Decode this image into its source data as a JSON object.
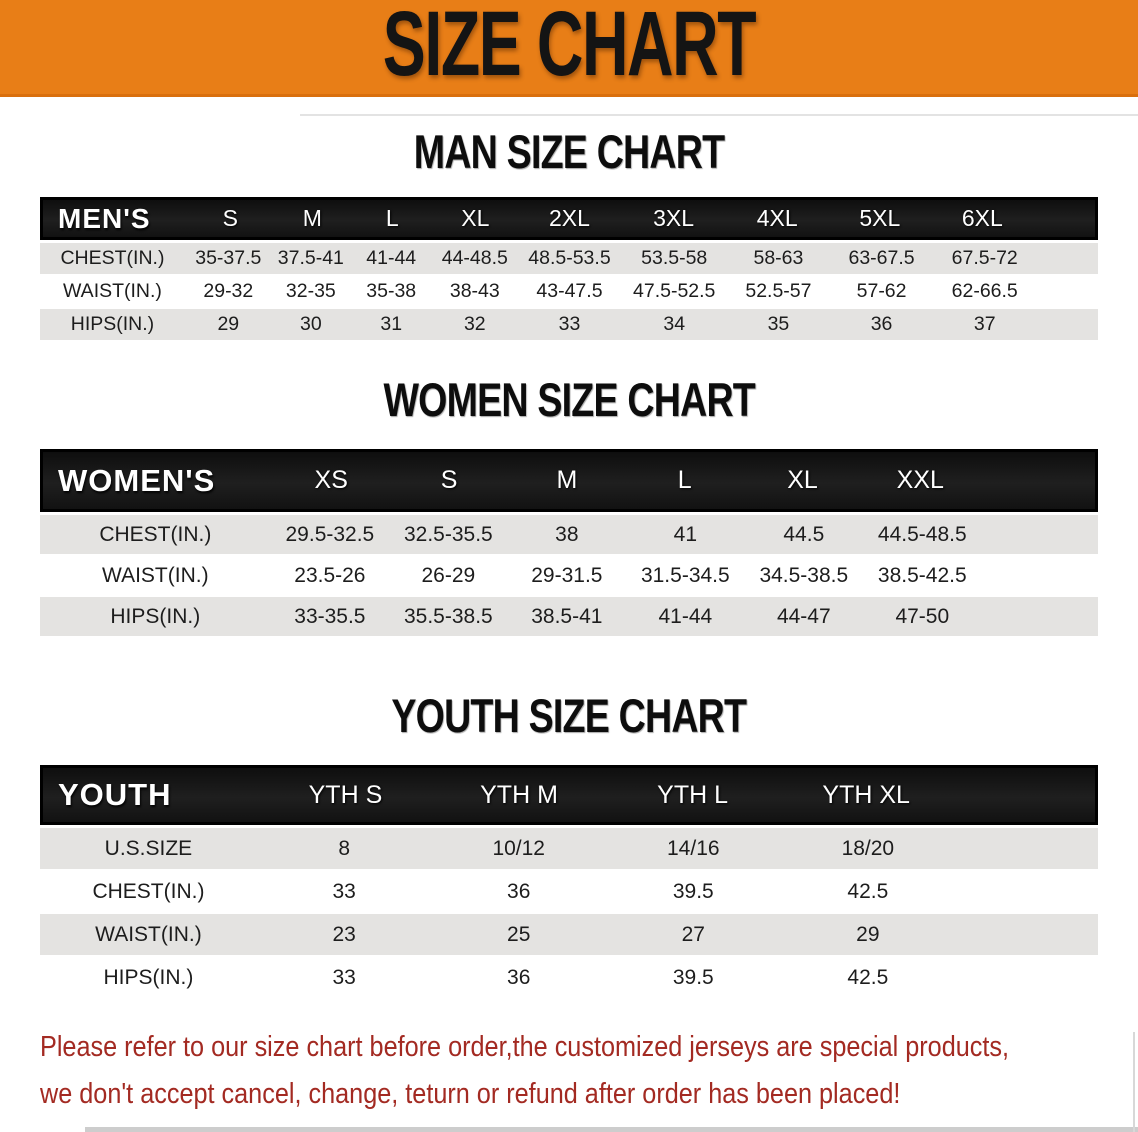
{
  "banner": {
    "title": "SIZE CHART",
    "bg_color": "#e87e17",
    "text_color": "#141414"
  },
  "tables": [
    {
      "id": "men",
      "heading": "MAN SIZE CHART",
      "header_label": "MEN'S",
      "columns": [
        "S",
        "M",
        "L",
        "XL",
        "2XL",
        "3XL",
        "4XL",
        "5XL",
        "6XL"
      ],
      "rows": [
        {
          "label": "CHEST(IN.)",
          "values": [
            "35-37.5",
            "37.5-41",
            "41-44",
            "44-48.5",
            "48.5-53.5",
            "53.5-58",
            "58-63",
            "63-67.5",
            "67.5-72"
          ]
        },
        {
          "label": "WAIST(IN.)",
          "values": [
            "29-32",
            "32-35",
            "35-38",
            "38-43",
            "43-47.5",
            "47.5-52.5",
            "52.5-57",
            "57-62",
            "62-66.5"
          ]
        },
        {
          "label": "HIPS(IN.)",
          "values": [
            "29",
            "30",
            "31",
            "32",
            "33",
            "34",
            "35",
            "36",
            "37"
          ]
        }
      ]
    },
    {
      "id": "women",
      "heading": "WOMEN SIZE CHART",
      "header_label": "WOMEN'S",
      "columns": [
        "XS",
        "S",
        "M",
        "L",
        "XL",
        "XXL"
      ],
      "rows": [
        {
          "label": "CHEST(IN.)",
          "values": [
            "29.5-32.5",
            "32.5-35.5",
            "38",
            "41",
            "44.5",
            "44.5-48.5"
          ]
        },
        {
          "label": "WAIST(IN.)",
          "values": [
            "23.5-26",
            "26-29",
            "29-31.5",
            "31.5-34.5",
            "34.5-38.5",
            "38.5-42.5"
          ]
        },
        {
          "label": "HIPS(IN.)",
          "values": [
            "33-35.5",
            "35.5-38.5",
            "38.5-41",
            "41-44",
            "44-47",
            "47-50"
          ]
        }
      ]
    },
    {
      "id": "youth",
      "heading": "YOUTH SIZE CHART",
      "header_label": "YOUTH",
      "columns": [
        "YTH S",
        "YTH M",
        "YTH L",
        "YTH XL"
      ],
      "rows": [
        {
          "label": "U.S.SIZE",
          "values": [
            "8",
            "10/12",
            "14/16",
            "18/20"
          ]
        },
        {
          "label": "CHEST(IN.)",
          "values": [
            "33",
            "36",
            "39.5",
            "42.5"
          ]
        },
        {
          "label": "WAIST(IN.)",
          "values": [
            "23",
            "25",
            "27",
            "29"
          ]
        },
        {
          "label": "HIPS(IN.)",
          "values": [
            "33",
            "36",
            "39.5",
            "42.5"
          ]
        }
      ]
    }
  ],
  "table_style": {
    "header_bg": "#161616",
    "row_gray": "#e4e3e1",
    "row_white": "#ffffff"
  },
  "disclaimer": {
    "line1": "Please refer to our size chart before order,the customized jerseys are special products,",
    "line2": "we don't accept cancel, change, teturn or refund after order has been placed!",
    "color": "#a32a22"
  }
}
